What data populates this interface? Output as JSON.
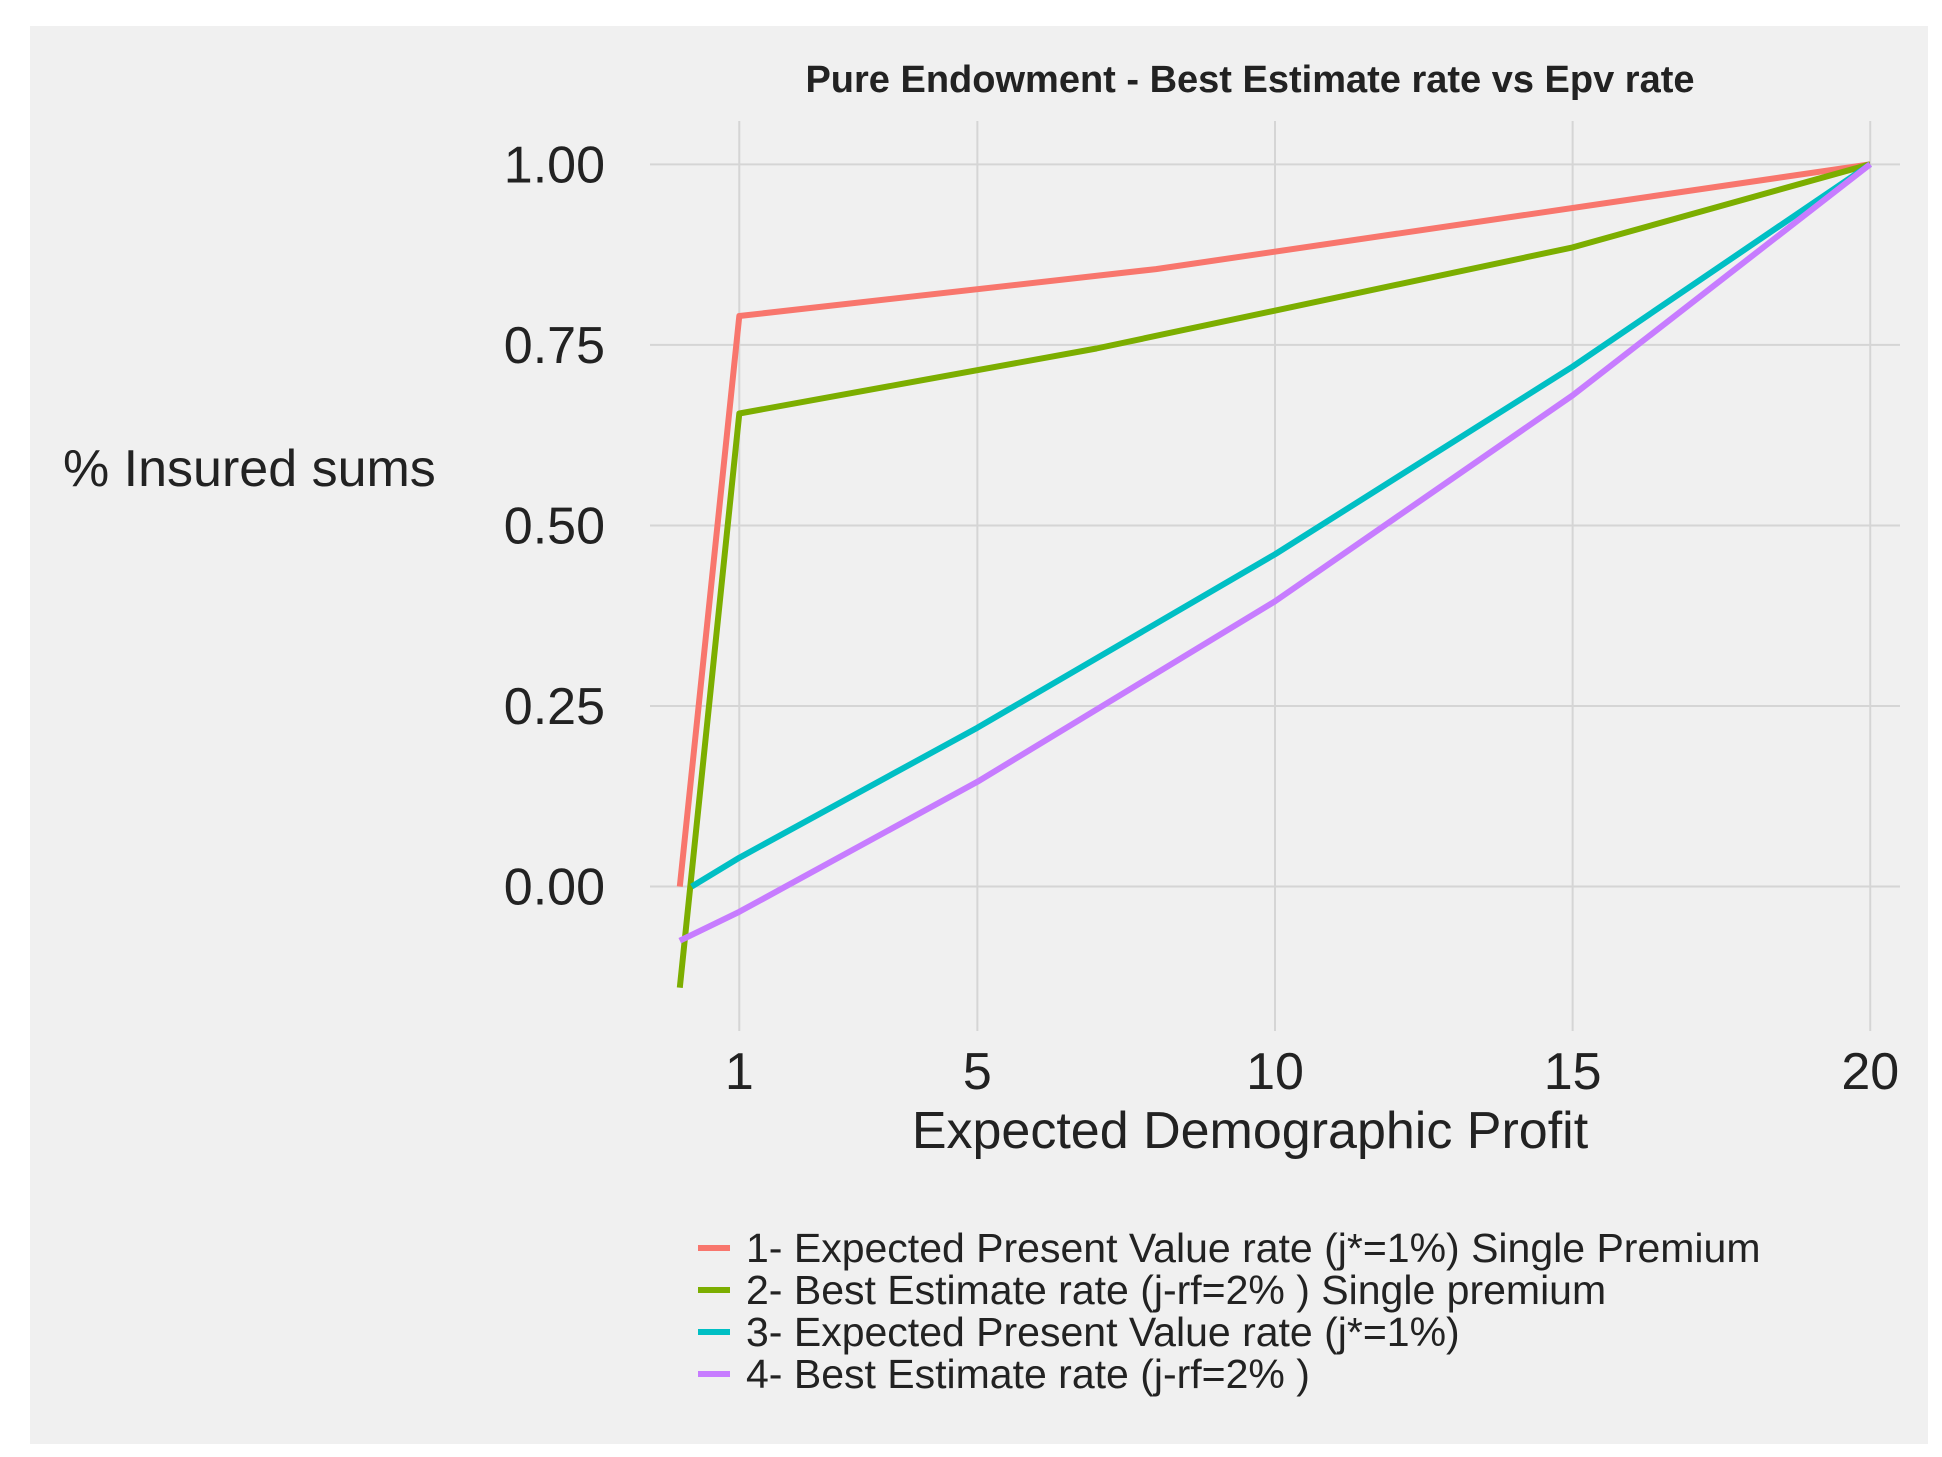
{
  "chart_data": {
    "type": "line",
    "title": "Pure Endowment - Best Estimate rate vs Epv rate",
    "xlabel": "Expected Demographic Profit",
    "ylabel": "% Insured sums",
    "x_ticks": [
      1,
      5,
      10,
      15,
      20
    ],
    "x_tick_labels": [
      "1",
      "5",
      "10",
      "15",
      "20"
    ],
    "y_ticks": [
      0,
      0.25,
      0.5,
      0.75,
      1
    ],
    "y_tick_labels": [
      "0.00",
      "0.25",
      "0.50",
      "0.75",
      "1.00"
    ],
    "xlim": [
      0,
      21
    ],
    "ylim": [
      -0.2,
      1.06
    ],
    "grid": true,
    "legend_position": "bottom",
    "series": [
      {
        "name": "1- Expected Present Value rate (j*=1%) Single Premium",
        "color": "#f8766d",
        "x": [
          0,
          1,
          8,
          20
        ],
        "y": [
          0,
          0.79,
          0.855,
          1.0
        ]
      },
      {
        "name": "2- Best Estimate rate (j-rf=2% ) Single premium",
        "color": "#7cae00",
        "x": [
          0,
          1,
          7,
          15,
          20
        ],
        "y": [
          -0.14,
          0.655,
          0.745,
          0.885,
          1.0
        ]
      },
      {
        "name": "3- Expected Present Value rate (j*=1%)",
        "color": "#00bfc4",
        "x": [
          0.2,
          1,
          5,
          10,
          15,
          20
        ],
        "y": [
          0,
          0.04,
          0.22,
          0.46,
          0.72,
          1.0
        ]
      },
      {
        "name": "4- Best Estimate rate (j-rf=2% )",
        "color": "#c77cff",
        "x": [
          0,
          1,
          5,
          10,
          15,
          20
        ],
        "y": [
          -0.075,
          -0.035,
          0.145,
          0.395,
          0.68,
          1.0
        ]
      }
    ]
  }
}
